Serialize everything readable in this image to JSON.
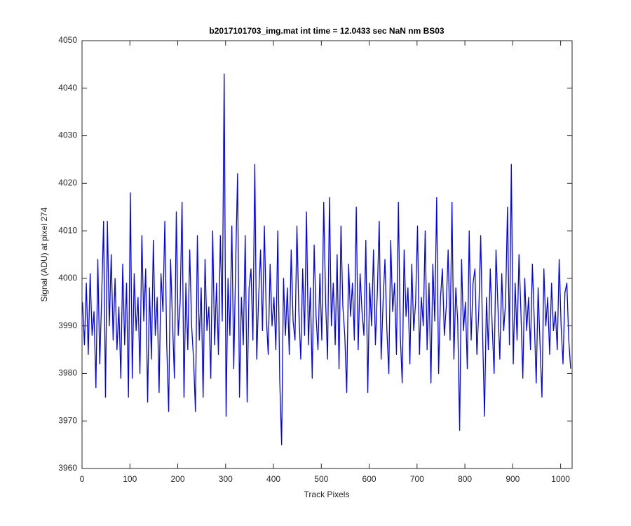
{
  "chart_data": {
    "type": "line",
    "title": "b2017101703_img.mat int time = 12.0433 sec  NaN nm BS03",
    "x_label": "Track Pixels",
    "y_label": "Signal (ADU) at pixel 274",
    "xlim": [
      0,
      1024
    ],
    "ylim": [
      3960,
      4050
    ],
    "xticks": [
      0,
      100,
      200,
      300,
      400,
      500,
      600,
      700,
      800,
      900,
      1000
    ],
    "yticks": [
      3960,
      3970,
      3980,
      3990,
      4000,
      4010,
      4020,
      4030,
      4040,
      4050
    ],
    "grid": false,
    "series": [
      {
        "name": "signal",
        "color": "#0000ff",
        "x": [
          1,
          5,
          9,
          13,
          17,
          21,
          25,
          29,
          33,
          37,
          41,
          45,
          49,
          53,
          57,
          61,
          65,
          69,
          73,
          77,
          81,
          85,
          89,
          93,
          97,
          101,
          105,
          109,
          113,
          117,
          121,
          125,
          129,
          133,
          137,
          141,
          145,
          149,
          153,
          157,
          161,
          165,
          169,
          173,
          177,
          181,
          185,
          189,
          193,
          197,
          201,
          205,
          209,
          213,
          217,
          221,
          225,
          229,
          233,
          237,
          241,
          245,
          249,
          253,
          257,
          261,
          265,
          269,
          273,
          277,
          281,
          285,
          289,
          293,
          297,
          301,
          305,
          309,
          313,
          317,
          321,
          325,
          329,
          333,
          337,
          341,
          345,
          349,
          353,
          357,
          361,
          365,
          369,
          373,
          377,
          381,
          385,
          389,
          393,
          397,
          401,
          405,
          409,
          413,
          417,
          421,
          425,
          429,
          433,
          437,
          441,
          445,
          449,
          453,
          457,
          461,
          465,
          469,
          473,
          477,
          481,
          485,
          489,
          493,
          497,
          501,
          505,
          509,
          513,
          517,
          521,
          525,
          529,
          533,
          537,
          541,
          545,
          549,
          553,
          557,
          561,
          565,
          569,
          573,
          577,
          581,
          585,
          589,
          593,
          597,
          601,
          605,
          609,
          613,
          617,
          621,
          625,
          629,
          633,
          637,
          641,
          645,
          649,
          653,
          657,
          661,
          665,
          669,
          673,
          677,
          681,
          685,
          689,
          693,
          697,
          701,
          705,
          709,
          713,
          717,
          721,
          725,
          729,
          733,
          737,
          741,
          745,
          749,
          753,
          757,
          761,
          765,
          769,
          773,
          777,
          781,
          785,
          789,
          793,
          797,
          801,
          805,
          809,
          813,
          817,
          821,
          825,
          829,
          833,
          837,
          841,
          845,
          849,
          853,
          857,
          861,
          865,
          869,
          873,
          877,
          881,
          885,
          889,
          893,
          897,
          901,
          905,
          909,
          913,
          917,
          921,
          925,
          929,
          933,
          937,
          941,
          945,
          949,
          953,
          957,
          961,
          965,
          969,
          973,
          977,
          981,
          985,
          989,
          993,
          997,
          1001,
          1005,
          1009,
          1013,
          1017,
          1021
        ],
        "values": [
          3995,
          3986,
          3999,
          3984,
          4001,
          3988,
          3993,
          3977,
          4004,
          3982,
          3996,
          4012,
          3975,
          4012,
          3990,
          4005,
          3987,
          4000,
          3985,
          3994,
          3979,
          4003,
          3986,
          3999,
          3975,
          4018,
          3979,
          4001,
          3989,
          3996,
          3980,
          4009,
          3991,
          4002,
          3974,
          3998,
          3983,
          4008,
          3988,
          3996,
          3976,
          4001,
          3993,
          4012,
          3986,
          3972,
          4004,
          3991,
          3979,
          4014,
          3988,
          3995,
          4016,
          3975,
          3999,
          3985,
          4006,
          3990,
          3983,
          3972,
          4009,
          3987,
          3998,
          3975,
          4004,
          3989,
          3994,
          3979,
          4010,
          3986,
          3999,
          3984,
          4009,
          3991,
          4043,
          3971,
          4000,
          3988,
          4011,
          3981,
          4003,
          4022,
          3975,
          3996,
          3986,
          4009,
          3974,
          3998,
          4002,
          3987,
          4024,
          3983,
          3996,
          4006,
          3989,
          4011,
          3992,
          3984,
          4003,
          3990,
          3996,
          3985,
          4010,
          3979,
          3965,
          4000,
          3988,
          3998,
          3984,
          4006,
          3991,
          3987,
          4011,
          3993,
          3983,
          4002,
          3988,
          4014,
          3986,
          3998,
          3979,
          4007,
          3992,
          3985,
          4001,
          3987,
          4016,
          3995,
          3983,
          4017,
          3990,
          3999,
          3986,
          4005,
          3981,
          4011,
          3994,
          3988,
          3976,
          4003,
          3992,
          3999,
          3987,
          4015,
          3985,
          4001,
          3993,
          3988,
          4008,
          3976,
          3999,
          3990,
          4006,
          3986,
          3997,
          4012,
          3983,
          3995,
          4004,
          3989,
          3980,
          4008,
          3993,
          3999,
          3984,
          4016,
          3988,
          3978,
          4006,
          3992,
          3998,
          3982,
          4003,
          3989,
          3995,
          4011,
          3984,
          3996,
          3990,
          4010,
          3985,
          3999,
          3978,
          4003,
          3991,
          4017,
          3980,
          3996,
          4002,
          3988,
          3994,
          4006,
          3987,
          4016,
          3983,
          3998,
          3991,
          3968,
          4004,
          3989,
          3995,
          3981,
          4010,
          3987,
          3999,
          4002,
          3984,
          3993,
          4009,
          3988,
          3971,
          3996,
          3985,
          4002,
          3990,
          3980,
          4006,
          3994,
          3983,
          4001,
          3989,
          3995,
          4015,
          3986,
          4024,
          3982,
          3999,
          3987,
          4005,
          3993,
          3979,
          4000,
          3989,
          3996,
          3985,
          4003,
          3991,
          3978,
          3998,
          3986,
          3975,
          4002,
          3990,
          3996,
          3984,
          3999,
          3989,
          3993,
          3985,
          4004,
          3990,
          3982,
          3997,
          3999,
          3987,
          3981
        ]
      }
    ]
  }
}
